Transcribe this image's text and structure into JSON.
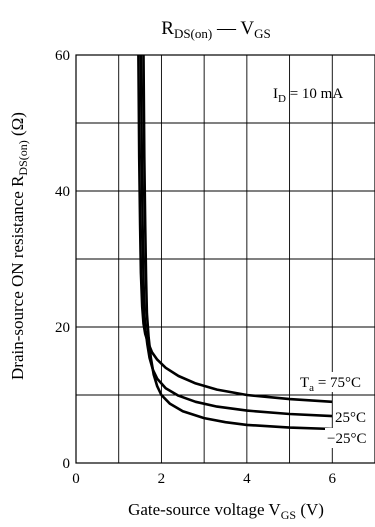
{
  "chart_data": {
    "type": "line",
    "title_main": "R",
    "title_main_sub": "DS(on)",
    "title_dash": " — V",
    "title_dash_sub": "GS",
    "xlabel_main": "Gate-source voltage  V",
    "xlabel_sub": "GS",
    "xlabel_unit": "  (V)",
    "ylabel_main": "Drain-source ON resistance  R",
    "ylabel_sub": "DS(on)",
    "ylabel_unit": "  (Ω)",
    "xlim": [
      0,
      7
    ],
    "ylim": [
      0,
      60
    ],
    "x_ticks": [
      0,
      2,
      4,
      6
    ],
    "y_ticks": [
      0,
      20,
      40,
      60
    ],
    "x_grid": [
      1,
      2,
      3,
      4,
      5,
      6
    ],
    "y_grid": [
      10,
      20,
      30,
      40,
      50
    ],
    "condition_main": "I",
    "condition_sub": "D",
    "condition_value": " = 10 mA",
    "series": [
      {
        "name_main": "T",
        "name_sub": "a",
        "name_value": " = 75°C",
        "x": [
          1.46,
          1.48,
          1.5,
          1.52,
          1.55,
          1.58,
          1.62,
          1.68,
          1.78,
          1.9,
          2.1,
          2.4,
          2.8,
          3.3,
          4.0,
          5.0,
          6.0
        ],
        "y": [
          60,
          45,
          35,
          28,
          23,
          20.5,
          19,
          17.8,
          16.3,
          15.2,
          14.0,
          12.8,
          11.7,
          10.8,
          10.0,
          9.4,
          9.0
        ]
      },
      {
        "name": "25°C",
        "x": [
          1.52,
          1.54,
          1.56,
          1.58,
          1.6,
          1.63,
          1.67,
          1.72,
          1.8,
          1.9,
          2.1,
          2.4,
          2.8,
          3.3,
          4.0,
          5.0,
          6.0
        ],
        "y": [
          60,
          45,
          35,
          27,
          22,
          19.5,
          17.5,
          15.5,
          13.7,
          12.4,
          11.0,
          9.9,
          9.0,
          8.3,
          7.7,
          7.2,
          6.9
        ]
      },
      {
        "name": "−25°C",
        "x": [
          1.58,
          1.6,
          1.62,
          1.64,
          1.66,
          1.7,
          1.75,
          1.82,
          1.9,
          2.0,
          2.2,
          2.5,
          3.0,
          3.5,
          4.0,
          5.0,
          6.0
        ],
        "y": [
          60,
          45,
          35,
          27,
          22,
          18.5,
          15.5,
          13.0,
          11.3,
          10.0,
          8.7,
          7.6,
          6.6,
          6.0,
          5.6,
          5.2,
          5.0
        ]
      }
    ],
    "grid": true
  }
}
